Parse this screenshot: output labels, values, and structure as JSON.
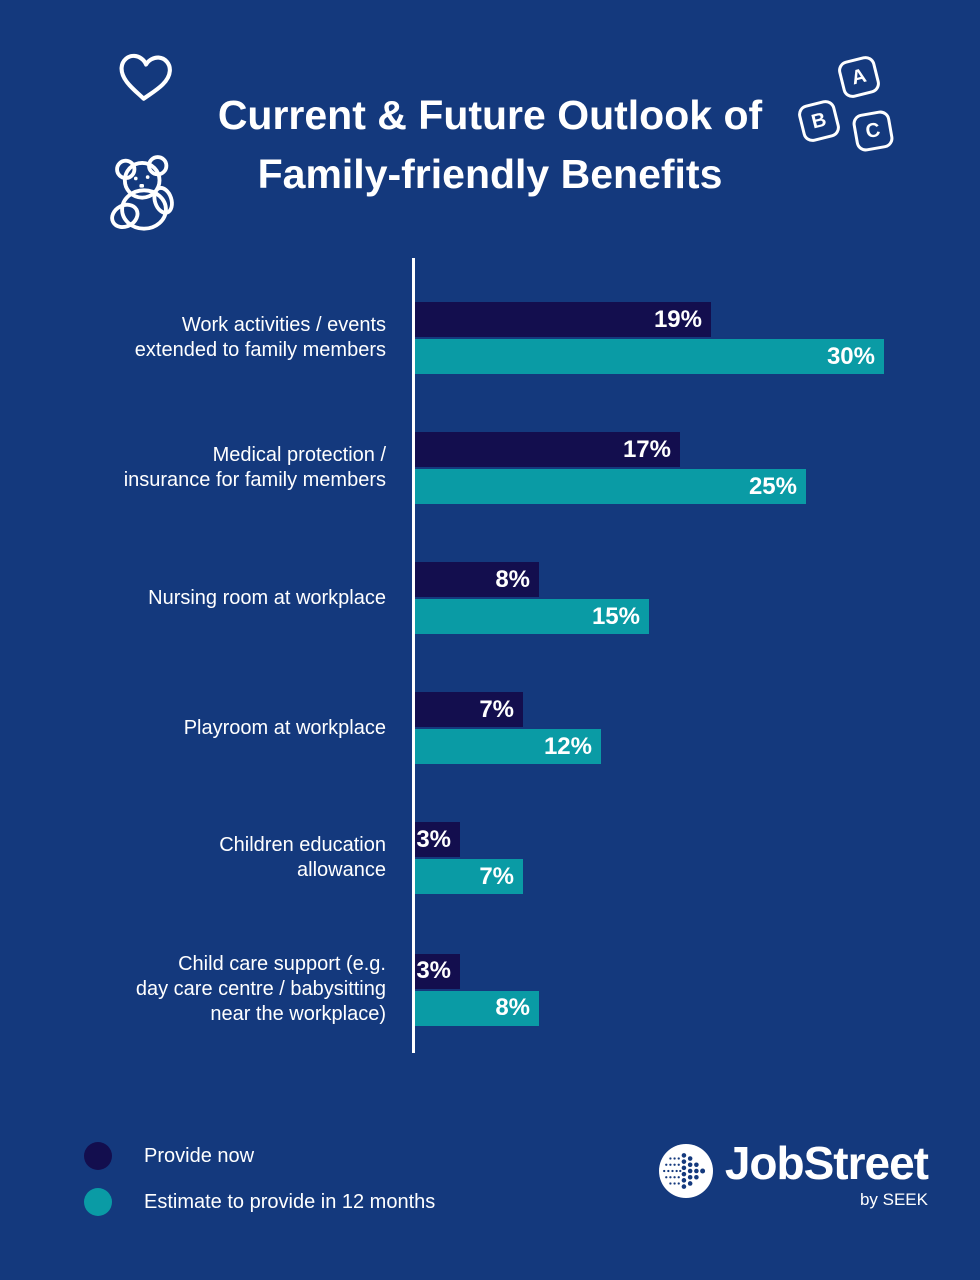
{
  "title": {
    "line1": "Current & Future Outlook of",
    "line2": "Family-friendly Benefits"
  },
  "colors": {
    "background": "#14397d",
    "provide_now": "#130e4e",
    "estimate": "#0a9ba5",
    "text": "#ffffff"
  },
  "chart_data": {
    "type": "bar",
    "orientation": "horizontal",
    "title": "Current & Future Outlook of Family-friendly Benefits",
    "categories": [
      "Work activities / events\nextended to family members",
      "Medical protection /\ninsurance for family members",
      "Nursing room at workplace",
      "Playroom at workplace",
      "Children education\nallowance",
      "Child care support (e.g.\nday care centre / babysitting\nnear the workplace)"
    ],
    "series": [
      {
        "name": "Provide now",
        "color": "#130e4e",
        "values": [
          19,
          17,
          8,
          7,
          3,
          3
        ]
      },
      {
        "name": "Estimate to provide in 12 months",
        "color": "#0a9ba5",
        "values": [
          30,
          25,
          15,
          12,
          7,
          8
        ]
      }
    ],
    "value_suffix": "%",
    "xlim": [
      0,
      30
    ],
    "grid": false,
    "legend_position": "bottom-left"
  },
  "legend": {
    "items": [
      {
        "label": "Provide now",
        "color": "#130e4e"
      },
      {
        "label": "Estimate to provide in 12 months",
        "color": "#0a9ba5"
      }
    ]
  },
  "logo": {
    "name": "JobStreet",
    "byline": "by SEEK"
  },
  "decor": {
    "blocks": [
      "A",
      "B",
      "C"
    ]
  }
}
